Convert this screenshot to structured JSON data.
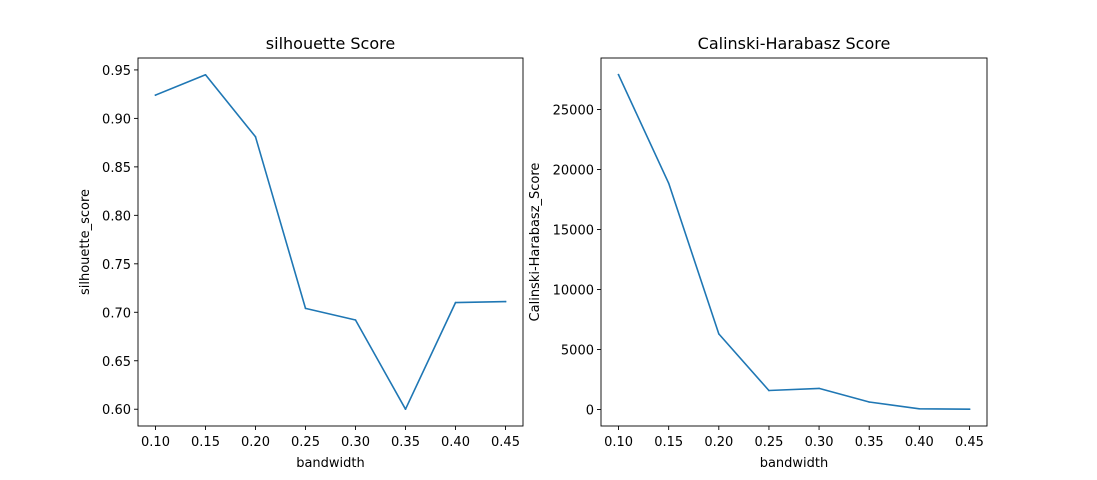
{
  "chart_data": [
    {
      "type": "line",
      "title": "silhouette Score",
      "xlabel": "bandwidth",
      "ylabel": "silhouette_score",
      "x": [
        0.1,
        0.15,
        0.2,
        0.25,
        0.3,
        0.35,
        0.4,
        0.45
      ],
      "series": [
        {
          "values": [
            0.924,
            0.945,
            0.881,
            0.704,
            0.692,
            0.6,
            0.71,
            0.711
          ],
          "color": "#1f77b4"
        }
      ],
      "xlim": [
        0.0825,
        0.4675
      ],
      "ylim": [
        0.5827,
        0.9623
      ],
      "xticks": [
        0.1,
        0.15,
        0.2,
        0.25,
        0.3,
        0.35,
        0.4,
        0.45
      ],
      "xtick_labels": [
        "0.10",
        "0.15",
        "0.20",
        "0.25",
        "0.30",
        "0.35",
        "0.40",
        "0.45"
      ],
      "yticks": [
        0.6,
        0.65,
        0.7,
        0.75,
        0.8,
        0.85,
        0.9,
        0.95
      ],
      "ytick_labels": [
        "0.60",
        "0.65",
        "0.70",
        "0.75",
        "0.80",
        "0.85",
        "0.90",
        "0.95"
      ],
      "grid": false
    },
    {
      "type": "line",
      "title": "Calinski-Harabasz Score",
      "xlabel": "bandwidth",
      "ylabel": "Calinski-Harabasz_Score",
      "x": [
        0.1,
        0.15,
        0.2,
        0.25,
        0.3,
        0.35,
        0.4,
        0.45
      ],
      "series": [
        {
          "values": [
            27900,
            18850,
            6300,
            1580,
            1760,
            620,
            60,
            20
          ],
          "color": "#1f77b4"
        }
      ],
      "xlim": [
        0.0825,
        0.4675
      ],
      "ylim": [
        -1377,
        29296
      ],
      "xticks": [
        0.1,
        0.15,
        0.2,
        0.25,
        0.3,
        0.35,
        0.4,
        0.45
      ],
      "xtick_labels": [
        "0.10",
        "0.15",
        "0.20",
        "0.25",
        "0.30",
        "0.35",
        "0.40",
        "0.45"
      ],
      "yticks": [
        0,
        5000,
        10000,
        15000,
        20000,
        25000
      ],
      "ytick_labels": [
        "0",
        "5000",
        "10000",
        "15000",
        "20000",
        "25000"
      ],
      "grid": false
    }
  ]
}
